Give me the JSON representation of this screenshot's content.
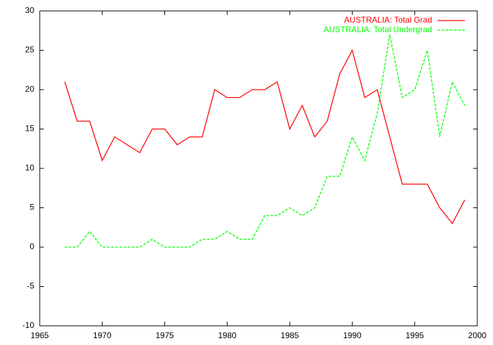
{
  "chart_data": {
    "type": "line",
    "x": [
      1967,
      1968,
      1969,
      1970,
      1971,
      1972,
      1973,
      1974,
      1975,
      1976,
      1977,
      1978,
      1979,
      1980,
      1981,
      1982,
      1983,
      1984,
      1985,
      1986,
      1987,
      1988,
      1989,
      1990,
      1991,
      1992,
      1993,
      1994,
      1995,
      1996,
      1997,
      1998,
      1999
    ],
    "series": [
      {
        "name": "AUSTRALIA: Total Grad",
        "color": "#ff0000",
        "line_style": "solid",
        "values": [
          21,
          16,
          16,
          11,
          14,
          13,
          12,
          15,
          15,
          13,
          14,
          14,
          20,
          19,
          19,
          20,
          20,
          21,
          15,
          18,
          14,
          16,
          22,
          25,
          19,
          20,
          14,
          8,
          8,
          8,
          5,
          3,
          6
        ]
      },
      {
        "name": "AUSTRALIA: Total Undergrad",
        "color": "#00ff00",
        "line_style": "dashed",
        "values": [
          0,
          0,
          2,
          0,
          0,
          0,
          0,
          1,
          0,
          0,
          0,
          1,
          1,
          2,
          1,
          1,
          4,
          4,
          5,
          4,
          5,
          9,
          9,
          14,
          11,
          17,
          27,
          19,
          20,
          25,
          14,
          21,
          18
        ]
      }
    ],
    "xlim": [
      1965,
      2000
    ],
    "xticks": [
      1965,
      1970,
      1975,
      1980,
      1985,
      1990,
      1995,
      2000
    ],
    "ylim": [
      -10,
      30
    ],
    "yticks": [
      -10,
      -5,
      0,
      5,
      10,
      15,
      20,
      25,
      30
    ],
    "grid": false,
    "legend": "top-right"
  }
}
